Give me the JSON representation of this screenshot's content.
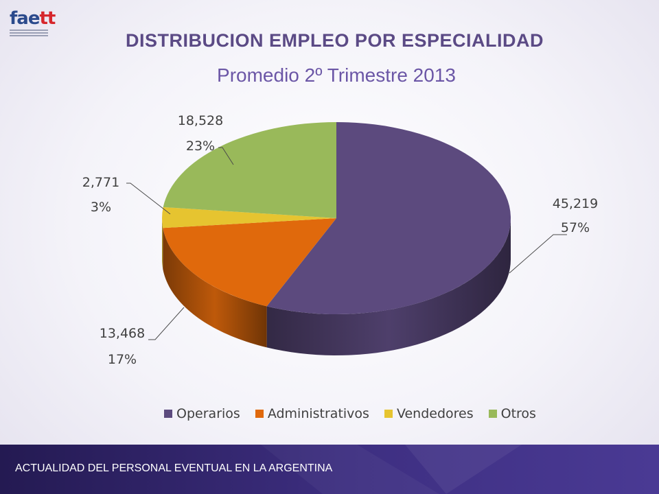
{
  "header": {
    "logo_text": "faett",
    "title": "DISTRIBUCION EMPLEO POR ESPECIALIDAD",
    "subtitle": "Promedio 2º Trimestre 2013"
  },
  "footer": {
    "text": "ACTUALIDAD DEL PERSONAL EVENTUAL EN LA ARGENTINA"
  },
  "chart_data": {
    "type": "pie",
    "style": "3d",
    "title": "DISTRIBUCION EMPLEO POR ESPECIALIDAD",
    "subtitle": "Promedio 2º Trimestre 2013",
    "legend_position": "bottom",
    "categories": [
      "Operarios",
      "Administrativos",
      "Vendedores",
      "Otros"
    ],
    "values": [
      45219,
      13468,
      2771,
      18528
    ],
    "value_labels": [
      "45,219",
      "13,468",
      "2,771",
      "18,528"
    ],
    "percent_labels": [
      "57%",
      "17%",
      "3%",
      "23%"
    ],
    "colors": [
      "#5c4a7e",
      "#e0690c",
      "#e6c430",
      "#99b95a"
    ]
  }
}
